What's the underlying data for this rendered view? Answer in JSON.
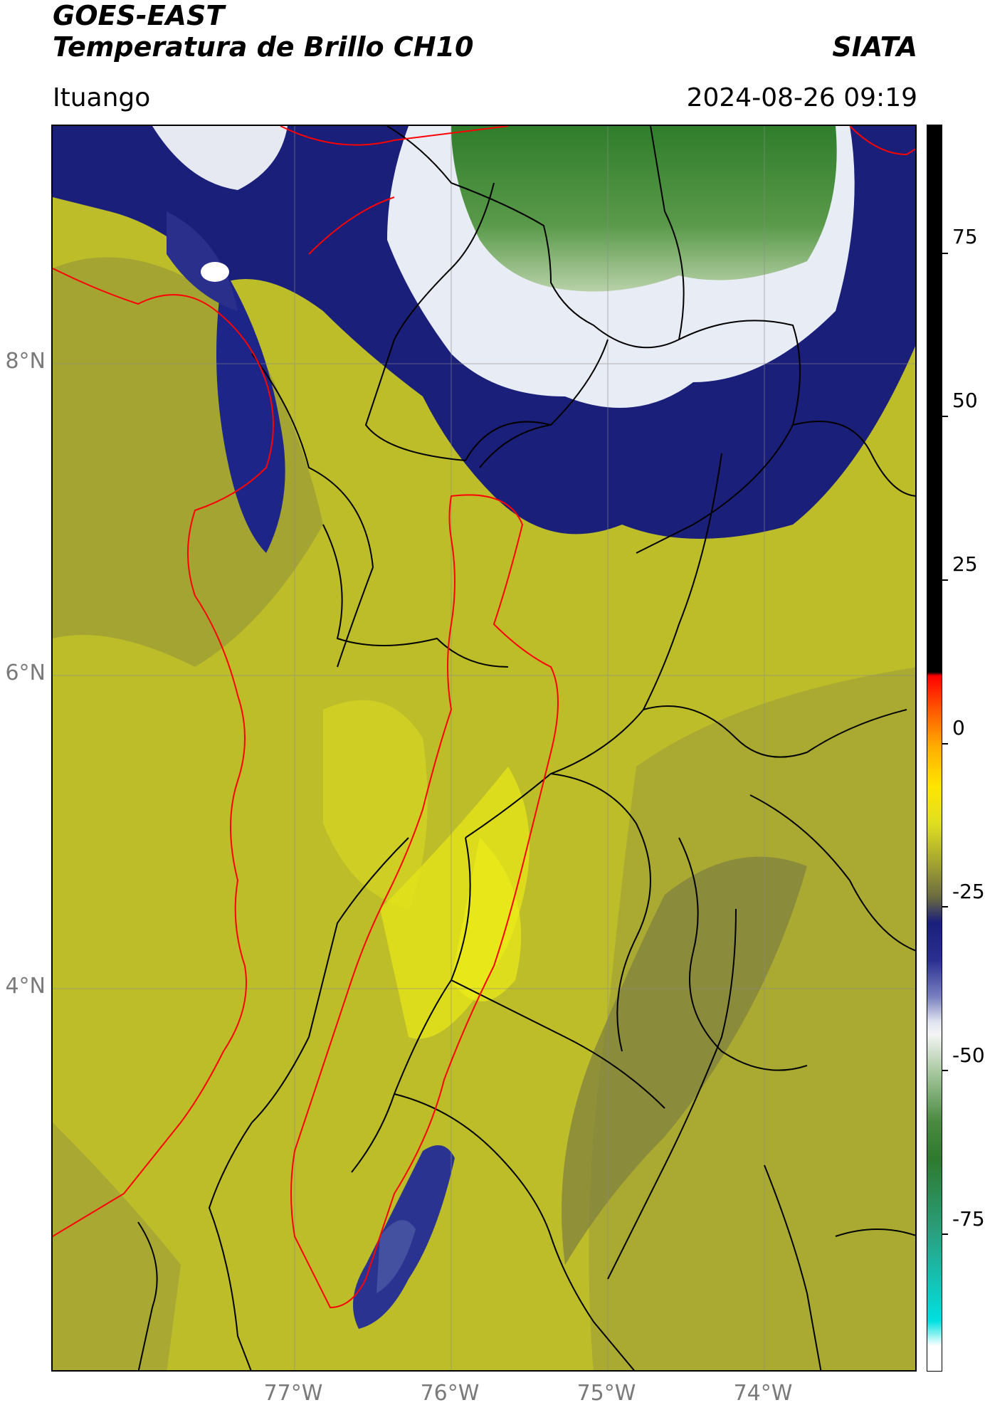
{
  "header": {
    "title_line1": "GOES-EAST",
    "title_line2": "Temperatura de Brillo CH10",
    "brand": "SIATA",
    "location": "Ituango",
    "datetime": "2024-08-26 09:19"
  },
  "map": {
    "lat_ticks": [
      "8°N",
      "6°N",
      "4°N"
    ],
    "lon_ticks": [
      "77°W",
      "76°W",
      "75°W",
      "74°W"
    ],
    "colors": {
      "yellow_bg": "#bdbd2a",
      "bright_yellow": "#e2e21a",
      "olive": "#8f8f3a",
      "navy": "#1a1f7a",
      "white": "#f2f2f2",
      "green": "#3e8a33",
      "coast_line": "#ff0000",
      "border_line": "#000000"
    }
  },
  "colorbar": {
    "ticks": [
      "75",
      "50",
      "25",
      "0",
      "-25",
      "-50",
      "-75"
    ],
    "tick_values": [
      75,
      50,
      25,
      0,
      -25,
      -50,
      -75
    ],
    "range": [
      -90,
      90
    ]
  }
}
